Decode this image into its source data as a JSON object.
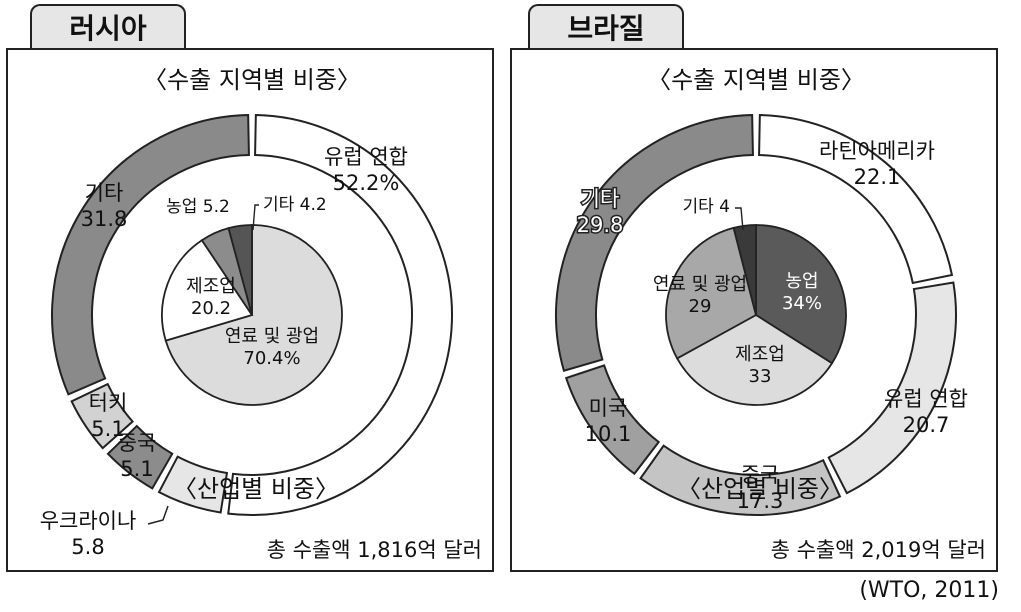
{
  "source": "(WTO, 2011)",
  "panels": [
    {
      "name": "러시아",
      "title_outer": "〈수출 지역별 비중〉",
      "title_inner": "〈산업별 비중〉",
      "total": "총 수출액 1,816억 달러"
    },
    {
      "name": "브라질",
      "title_outer": "〈수출 지역별 비중〉",
      "title_inner": "〈산업별 비중〉",
      "total": "총 수출액 2,019억 달러"
    }
  ],
  "chart_data": [
    {
      "type": "pie",
      "panel": "러시아",
      "ring": "outer",
      "title": "〈수출 지역별 비중〉",
      "slices": [
        {
          "label": "유럽 연합",
          "value": 52.2,
          "value_text": "52.2%",
          "color": "#ffffff"
        },
        {
          "label": "우크라이나",
          "value": 5.8,
          "value_text": "5.8",
          "color": "#e6e6e6"
        },
        {
          "label": "중국",
          "value": 5.1,
          "value_text": "5.1",
          "color": "#8c8c8c"
        },
        {
          "label": "터키",
          "value": 5.1,
          "value_text": "5.1",
          "color": "#d2d2d2"
        },
        {
          "label": "기타",
          "value": 31.8,
          "value_text": "31.8",
          "color": "#8a8a8a"
        }
      ]
    },
    {
      "type": "pie",
      "panel": "러시아",
      "ring": "inner",
      "title": "〈산업별 비중〉",
      "slices": [
        {
          "label": "연료 및 광업",
          "value": 70.4,
          "value_text": "70.4%",
          "color": "#dcdcdc"
        },
        {
          "label": "제조업",
          "value": 20.2,
          "value_text": "20.2",
          "color": "#ffffff"
        },
        {
          "label": "농업",
          "value": 5.2,
          "value_text": "5.2",
          "color": "#8c8c8c"
        },
        {
          "label": "기타",
          "value": 4.2,
          "value_text": "4.2",
          "color": "#555555"
        }
      ]
    },
    {
      "type": "pie",
      "panel": "브라질",
      "ring": "outer",
      "title": "〈수출 지역별 비중〉",
      "slices": [
        {
          "label": "라틴아메리카",
          "value": 22.1,
          "value_text": "22.1",
          "color": "#ffffff"
        },
        {
          "label": "유럽 연합",
          "value": 20.7,
          "value_text": "20.7",
          "color": "#e6e6e6"
        },
        {
          "label": "중국",
          "value": 17.3,
          "value_text": "17.3",
          "color": "#c4c4c4"
        },
        {
          "label": "미국",
          "value": 10.1,
          "value_text": "10.1",
          "color": "#a0a0a0"
        },
        {
          "label": "기타",
          "value": 29.8,
          "value_text": "29.8",
          "color": "#8a8a8a"
        }
      ]
    },
    {
      "type": "pie",
      "panel": "브라질",
      "ring": "inner",
      "title": "〈산업별 비중〉",
      "slices": [
        {
          "label": "농업",
          "value": 34,
          "value_text": "34%",
          "color": "#5a5a5a"
        },
        {
          "label": "제조업",
          "value": 33,
          "value_text": "33",
          "color": "#dcdcdc"
        },
        {
          "label": "연료 및 광업",
          "value": 29,
          "value_text": "29",
          "color": "#a8a8a8"
        },
        {
          "label": "기타",
          "value": 4,
          "value_text": "4",
          "color": "#3a3a3a"
        }
      ]
    }
  ]
}
